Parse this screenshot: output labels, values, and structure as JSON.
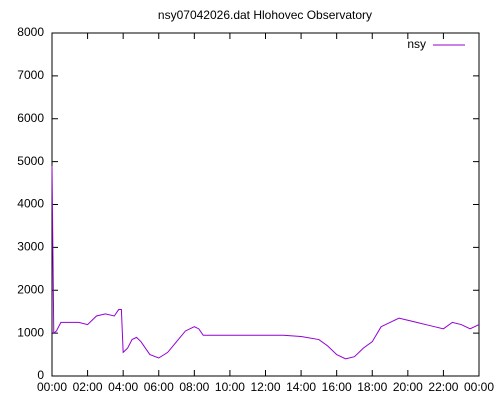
{
  "chart_data": {
    "type": "line",
    "title": "nsy07042026.dat Hlohovec Observatory",
    "x": [
      0,
      0.1,
      0.25,
      0.5,
      1.0,
      1.5,
      2.0,
      2.5,
      3.0,
      3.5,
      3.75,
      3.9,
      4.0,
      4.25,
      4.5,
      4.75,
      5.0,
      5.5,
      6.0,
      6.5,
      7.0,
      7.5,
      8.0,
      8.25,
      8.5,
      9,
      10,
      11,
      12,
      13,
      14,
      15,
      15.5,
      16,
      16.5,
      17,
      17.5,
      18,
      18.5,
      19,
      19.5,
      20,
      20.5,
      21,
      21.5,
      22,
      22.5,
      23,
      23.5,
      24
    ],
    "series": [
      {
        "name": "nsy",
        "color": "#9400d3",
        "values": [
          4900,
          1000,
          1050,
          1250,
          1250,
          1250,
          1200,
          1400,
          1450,
          1400,
          1550,
          1550,
          550,
          650,
          850,
          900,
          800,
          500,
          420,
          550,
          800,
          1050,
          1150,
          1100,
          950,
          950,
          950,
          950,
          950,
          950,
          920,
          850,
          700,
          500,
          400,
          450,
          650,
          800,
          1150,
          1250,
          1350,
          1300,
          1250,
          1200,
          1150,
          1100,
          1250,
          1200,
          1100,
          1200
        ]
      }
    ],
    "xlim": [
      0,
      24
    ],
    "xticks": [
      {
        "value": 0,
        "label": "00:00"
      },
      {
        "value": 2,
        "label": "02:00"
      },
      {
        "value": 4,
        "label": "04:00"
      },
      {
        "value": 6,
        "label": "06:00"
      },
      {
        "value": 8,
        "label": "08:00"
      },
      {
        "value": 10,
        "label": "10:00"
      },
      {
        "value": 12,
        "label": "12:00"
      },
      {
        "value": 14,
        "label": "14:00"
      },
      {
        "value": 16,
        "label": "16:00"
      },
      {
        "value": 18,
        "label": "18:00"
      },
      {
        "value": 20,
        "label": "20:00"
      },
      {
        "value": 22,
        "label": "22:00"
      },
      {
        "value": 24,
        "label": "00:00"
      }
    ],
    "ylim": [
      0,
      8000
    ],
    "yticks": [
      0,
      1000,
      2000,
      3000,
      4000,
      5000,
      6000,
      7000,
      8000
    ],
    "legend": "top-right"
  }
}
